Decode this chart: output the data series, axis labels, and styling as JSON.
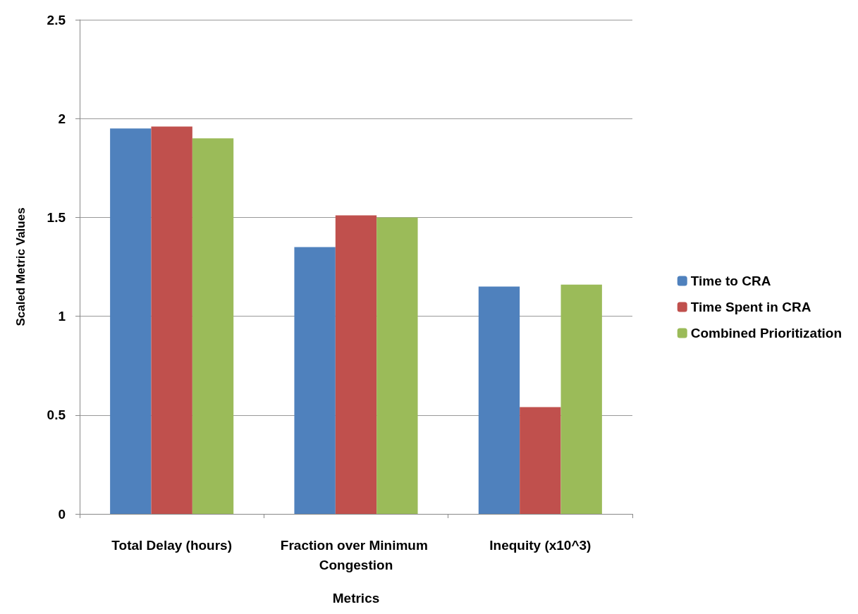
{
  "chart_data": {
    "type": "bar",
    "xlabel": "Metrics",
    "ylabel": "Scaled Metric Values",
    "categories": [
      "Total Delay (hours)",
      "Fraction over Minimum Congestion",
      "Inequity (x10^3)"
    ],
    "series": [
      {
        "name": "Time to CRA",
        "color": "#4f81bd",
        "values": [
          1.95,
          1.35,
          1.15
        ]
      },
      {
        "name": "Time Spent in CRA",
        "color": "#c0504d",
        "values": [
          1.96,
          1.51,
          0.54
        ]
      },
      {
        "name": "Combined Prioritization",
        "color": "#9bbb59",
        "values": [
          1.9,
          1.5,
          1.16
        ]
      }
    ],
    "ylim": [
      0,
      2.5
    ],
    "yticks": [
      0,
      0.5,
      1,
      1.5,
      2,
      2.5
    ],
    "grid": "y",
    "legend": "right"
  }
}
